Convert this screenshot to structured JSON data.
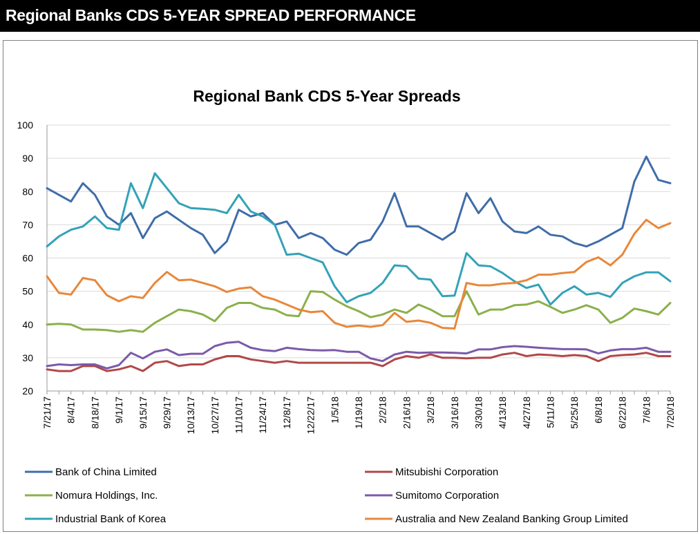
{
  "header": {
    "title": "Regional Banks CDS 5-YEAR SPREAD PERFORMANCE"
  },
  "chart_data": {
    "type": "line",
    "title": "Regional Bank CDS 5-Year Spreads",
    "xlabel": "",
    "ylabel": "",
    "ylim": [
      20,
      100
    ],
    "yticks": [
      20,
      30,
      40,
      50,
      60,
      70,
      80,
      90,
      100
    ],
    "grid": "horizontal",
    "legend_position": "bottom",
    "x": [
      "7/21/17",
      "7/28/17",
      "8/4/17",
      "8/11/17",
      "8/18/17",
      "8/25/17",
      "9/1/17",
      "9/8/17",
      "9/15/17",
      "9/22/17",
      "9/29/17",
      "10/6/17",
      "10/13/17",
      "10/20/17",
      "10/27/17",
      "11/3/17",
      "11/10/17",
      "11/17/17",
      "11/24/17",
      "12/1/17",
      "12/8/17",
      "12/15/17",
      "12/22/17",
      "12/29/17",
      "1/5/18",
      "1/12/18",
      "1/19/18",
      "1/26/18",
      "2/2/18",
      "2/9/18",
      "2/16/18",
      "2/23/18",
      "3/2/18",
      "3/9/18",
      "3/16/18",
      "3/23/18",
      "3/30/18",
      "4/6/18",
      "4/13/18",
      "4/20/18",
      "4/27/18",
      "5/4/18",
      "5/11/18",
      "5/18/18",
      "5/25/18",
      "6/1/18",
      "6/8/18",
      "6/15/18",
      "6/22/18",
      "6/29/18",
      "7/6/18",
      "7/13/18",
      "7/20/18"
    ],
    "x_tick_labels": [
      "7/21/17",
      "8/4/17",
      "8/18/17",
      "9/1/17",
      "9/15/17",
      "9/29/17",
      "10/13/17",
      "10/27/17",
      "11/10/17",
      "11/24/17",
      "12/8/17",
      "12/22/17",
      "1/5/18",
      "1/19/18",
      "2/2/18",
      "2/16/18",
      "3/2/18",
      "3/16/18",
      "3/30/18",
      "4/13/18",
      "4/27/18",
      "5/11/18",
      "5/25/18",
      "6/8/18",
      "6/22/18",
      "7/6/18",
      "7/20/18"
    ],
    "series": [
      {
        "name": "Bank of China Limited",
        "color": "#3f6da8",
        "values": [
          81,
          79,
          77,
          82.5,
          79,
          72.5,
          70,
          73.5,
          66,
          72,
          74,
          71.5,
          69,
          67,
          61.5,
          65,
          74.5,
          72.5,
          73.5,
          70,
          71,
          66,
          67.5,
          66,
          62.5,
          61,
          64.5,
          65.5,
          71,
          79.5,
          69.5,
          69.5,
          67.5,
          65.5,
          68,
          79.5,
          73.5,
          78,
          71,
          68,
          67.5,
          69.5,
          67,
          66.5,
          64.5,
          63.5,
          65,
          67,
          69,
          83,
          90.5,
          83.5,
          82.5
        ]
      },
      {
        "name": "Mitsubishi Corporation",
        "color": "#b04848",
        "values": [
          26.5,
          26,
          26,
          27.5,
          27.5,
          26,
          26.5,
          27.5,
          26,
          28.5,
          29,
          27.5,
          28,
          28,
          29.5,
          30.5,
          30.5,
          29.5,
          29,
          28.5,
          29,
          28.5,
          28.5,
          28.5,
          28.5,
          28.5,
          28.5,
          28.5,
          27.5,
          29.5,
          30.5,
          30,
          31,
          30,
          30,
          29.8,
          30,
          30,
          31,
          31.5,
          30.5,
          31,
          30.8,
          30.5,
          30.8,
          30.5,
          29,
          30.5,
          30.8,
          31,
          31.5,
          30.5,
          30.5
        ]
      },
      {
        "name": "Nomura Holdings, Inc.",
        "color": "#8bb04a",
        "values": [
          40,
          40.2,
          40,
          38.5,
          38.5,
          38.3,
          37.8,
          38.3,
          37.8,
          40.5,
          42.5,
          44.5,
          44,
          43,
          41,
          45,
          46.5,
          46.5,
          45,
          44.5,
          42.8,
          42.5,
          50,
          49.8,
          47.5,
          45.5,
          44,
          42.2,
          43,
          44.5,
          43.5,
          46,
          44.5,
          42.5,
          42.5,
          50,
          43,
          44.5,
          44.5,
          45.8,
          46,
          47,
          45.3,
          43.5,
          44.5,
          45.8,
          44.5,
          40.5,
          42,
          44.8,
          44,
          43,
          46.5
        ]
      },
      {
        "name": "Sumitomo Corporation",
        "color": "#7b5aa8",
        "values": [
          27.5,
          28,
          27.8,
          28,
          28,
          26.8,
          27.8,
          31.5,
          29.8,
          31.8,
          32.5,
          30.8,
          31.2,
          31.2,
          33.5,
          34.5,
          34.8,
          33,
          32.3,
          32,
          33,
          32.6,
          32.3,
          32.2,
          32.3,
          31.8,
          31.8,
          29.8,
          29,
          31,
          31.8,
          31.5,
          31.6,
          31.6,
          31.5,
          31.3,
          32.5,
          32.5,
          33.2,
          33.5,
          33.3,
          33,
          32.8,
          32.6,
          32.6,
          32.5,
          31.3,
          32.2,
          32.6,
          32.6,
          33,
          31.8,
          31.8
        ]
      },
      {
        "name": "Industrial Bank of Korea",
        "color": "#33a2b8",
        "values": [
          63.5,
          66.5,
          68.5,
          69.5,
          72.5,
          69,
          68.5,
          82.5,
          75,
          85.5,
          81,
          76.5,
          75,
          74.8,
          74.5,
          73.5,
          79,
          74,
          72.5,
          70,
          61,
          61.3,
          60,
          58.7,
          51.5,
          46.7,
          48.5,
          49.5,
          52.5,
          57.8,
          57.5,
          53.8,
          53.5,
          48.5,
          48.7,
          61.5,
          57.8,
          57.5,
          55.5,
          53,
          51,
          52,
          46,
          49.5,
          51.5,
          49,
          49.5,
          48.3,
          52.5,
          54.5,
          55.7,
          55.7,
          53
        ]
      },
      {
        "name": "Australia and New Zealand Banking Group Limited",
        "color": "#e8873a",
        "values": [
          54.5,
          49.5,
          49,
          54,
          53.3,
          48.8,
          47,
          48.5,
          48,
          52.5,
          55.8,
          53.3,
          53.5,
          52.5,
          51.5,
          49.8,
          50.8,
          51.2,
          48.5,
          47.5,
          46,
          44.5,
          43.7,
          44,
          40.5,
          39.3,
          39.7,
          39.3,
          39.8,
          43.5,
          40.8,
          41.2,
          40.5,
          39,
          38.8,
          52.5,
          51.8,
          51.8,
          52.3,
          52.5,
          53.3,
          55,
          55,
          55.5,
          55.8,
          58.8,
          60.2,
          57.8,
          61,
          67.3,
          71.5,
          69,
          70.5
        ]
      }
    ]
  }
}
